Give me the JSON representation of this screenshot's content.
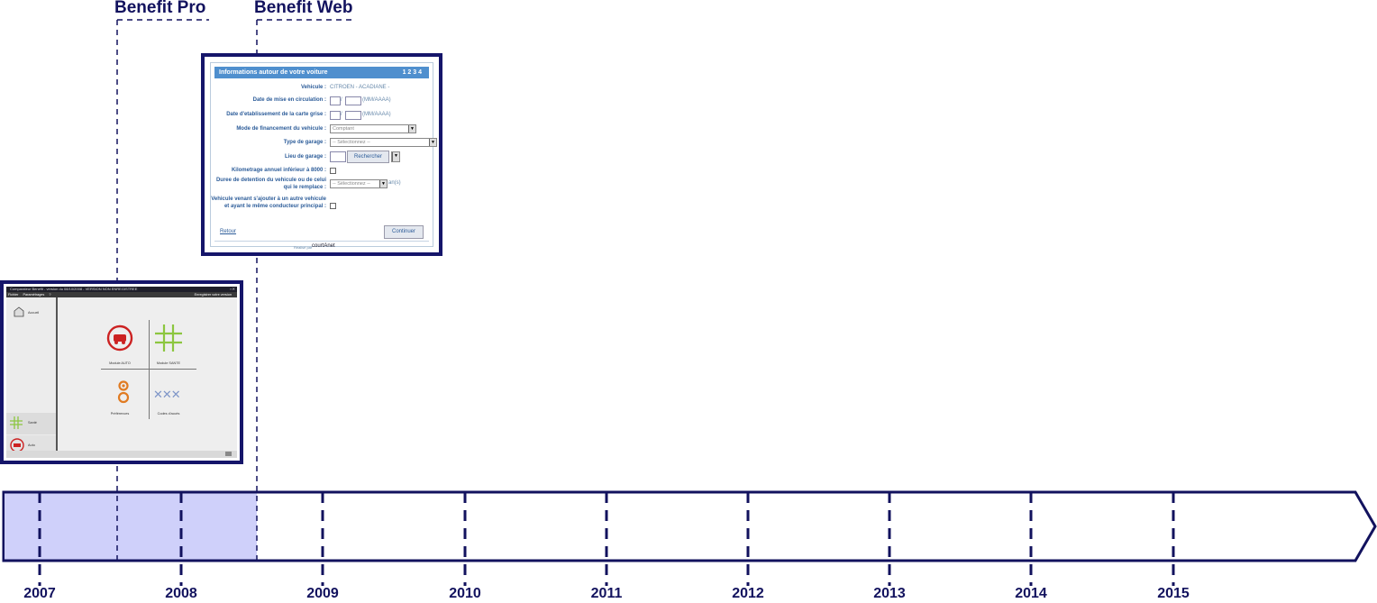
{
  "products": [
    {
      "name": "Benefit Pro"
    },
    {
      "name": "Benefit Web"
    }
  ],
  "timeline": {
    "years": [
      "2007",
      "2008",
      "2009",
      "2010",
      "2011",
      "2012",
      "2013",
      "2014",
      "2015"
    ],
    "highlight_color": "#cfd0fa",
    "line_color": "#12125e"
  },
  "benefit_web_screen": {
    "header": "Informations autour de votre voiture",
    "steps": "1 2 3 4",
    "vehicle_label": "Vehicule :",
    "vehicle_value": "CITROEN - ACADIANE -",
    "circulation_label": "Date de mise en circulation :",
    "date_hint": "(MM/AAAA)",
    "carte_grise_label": "Date d'etablissement de la carte grise :",
    "financement_label": "Mode de financement du vehicule :",
    "financement_value": "Comptant",
    "garage_type_label": "Type de garage :",
    "garage_type_value": "-- Sélectionnez --",
    "garage_lieu_label": "Lieu de garage :",
    "search_button": "Rechercher",
    "kilometrage_label": "Kilometrage annuel inférieur à 8000 :",
    "detention_label": "Duree de detention du vehicule ou de celui qui le remplace :",
    "detention_value": "-- Sélectionnez --",
    "detention_unit": "an(s)",
    "additional_label": "Vehicule venant s'ajouter à un autre vehicule et ayant le même conducteur principal :",
    "back_link": "Retour",
    "continue_button": "Continuer",
    "footer_text": "Réalisé par",
    "footer_brand": "courtAnet"
  },
  "benefit_pro_screen": {
    "window_title": "Comparateur Benefit - version du 08/10/2008 - VERSION NON ENREGISTREE",
    "menu_items": [
      "Fichier",
      "Paramétrages",
      "?"
    ],
    "menu_right": "Enregistrer votre version",
    "sidebar_top": "Accueil",
    "sidebar_items": [
      "Santé",
      "Auto"
    ],
    "modules": [
      "Module AUTO",
      "Module SANTE",
      "Préférences",
      "Codes d'accès"
    ]
  }
}
